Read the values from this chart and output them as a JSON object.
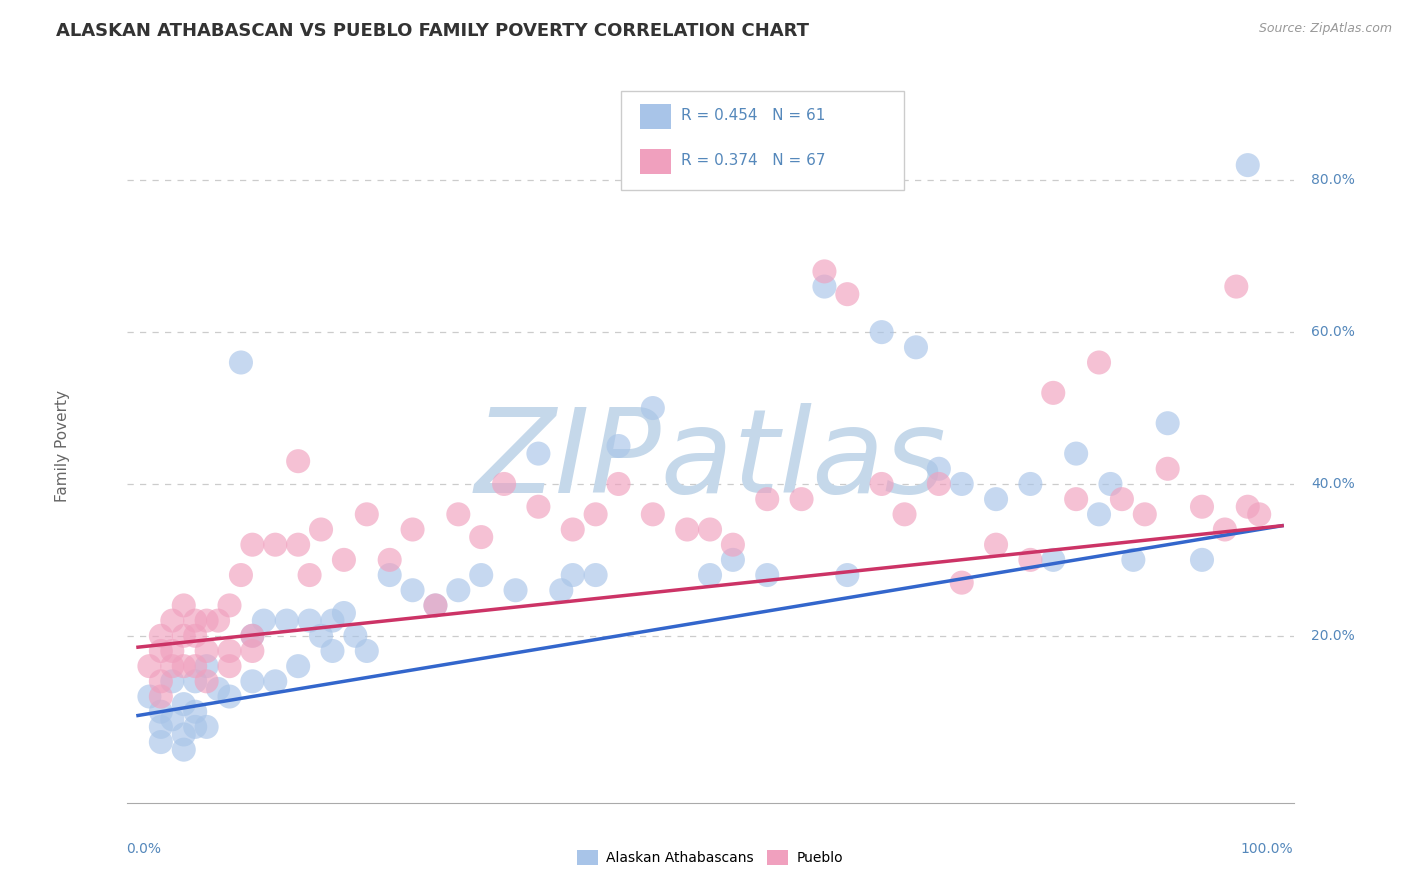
{
  "title": "ALASKAN ATHABASCAN VS PUEBLO FAMILY POVERTY CORRELATION CHART",
  "source": "Source: ZipAtlas.com",
  "ylabel": "Family Poverty",
  "ytick_labels": [
    "20.0%",
    "40.0%",
    "60.0%",
    "80.0%"
  ],
  "ytick_values": [
    0.2,
    0.4,
    0.6,
    0.8
  ],
  "xlim": [
    -0.01,
    1.01
  ],
  "ylim": [
    -0.02,
    0.92
  ],
  "legend_r1": "R = 0.454",
  "legend_n1": "N = 61",
  "legend_r2": "R = 0.374",
  "legend_n2": "N = 67",
  "color_blue": "#a8c4e8",
  "color_pink": "#f0a0be",
  "line_color_blue": "#3366cc",
  "line_color_pink": "#cc3366",
  "watermark": "ZIPatlas",
  "watermark_color": "#c5d8ea",
  "blue_scatter": [
    [
      0.01,
      0.12
    ],
    [
      0.02,
      0.1
    ],
    [
      0.02,
      0.08
    ],
    [
      0.02,
      0.06
    ],
    [
      0.03,
      0.14
    ],
    [
      0.03,
      0.09
    ],
    [
      0.04,
      0.07
    ],
    [
      0.04,
      0.11
    ],
    [
      0.04,
      0.05
    ],
    [
      0.05,
      0.14
    ],
    [
      0.05,
      0.1
    ],
    [
      0.05,
      0.08
    ],
    [
      0.06,
      0.16
    ],
    [
      0.06,
      0.08
    ],
    [
      0.07,
      0.13
    ],
    [
      0.08,
      0.12
    ],
    [
      0.09,
      0.56
    ],
    [
      0.1,
      0.14
    ],
    [
      0.1,
      0.2
    ],
    [
      0.11,
      0.22
    ],
    [
      0.12,
      0.14
    ],
    [
      0.13,
      0.22
    ],
    [
      0.14,
      0.16
    ],
    [
      0.15,
      0.22
    ],
    [
      0.16,
      0.2
    ],
    [
      0.17,
      0.22
    ],
    [
      0.17,
      0.18
    ],
    [
      0.18,
      0.23
    ],
    [
      0.19,
      0.2
    ],
    [
      0.2,
      0.18
    ],
    [
      0.22,
      0.28
    ],
    [
      0.24,
      0.26
    ],
    [
      0.26,
      0.24
    ],
    [
      0.28,
      0.26
    ],
    [
      0.3,
      0.28
    ],
    [
      0.33,
      0.26
    ],
    [
      0.35,
      0.44
    ],
    [
      0.37,
      0.26
    ],
    [
      0.38,
      0.28
    ],
    [
      0.4,
      0.28
    ],
    [
      0.42,
      0.45
    ],
    [
      0.45,
      0.5
    ],
    [
      0.5,
      0.28
    ],
    [
      0.52,
      0.3
    ],
    [
      0.55,
      0.28
    ],
    [
      0.6,
      0.66
    ],
    [
      0.62,
      0.28
    ],
    [
      0.65,
      0.6
    ],
    [
      0.68,
      0.58
    ],
    [
      0.7,
      0.42
    ],
    [
      0.72,
      0.4
    ],
    [
      0.75,
      0.38
    ],
    [
      0.78,
      0.4
    ],
    [
      0.8,
      0.3
    ],
    [
      0.82,
      0.44
    ],
    [
      0.84,
      0.36
    ],
    [
      0.85,
      0.4
    ],
    [
      0.87,
      0.3
    ],
    [
      0.9,
      0.48
    ],
    [
      0.93,
      0.3
    ],
    [
      0.97,
      0.82
    ]
  ],
  "pink_scatter": [
    [
      0.01,
      0.16
    ],
    [
      0.02,
      0.2
    ],
    [
      0.02,
      0.18
    ],
    [
      0.02,
      0.14
    ],
    [
      0.02,
      0.12
    ],
    [
      0.03,
      0.22
    ],
    [
      0.03,
      0.18
    ],
    [
      0.03,
      0.16
    ],
    [
      0.04,
      0.24
    ],
    [
      0.04,
      0.2
    ],
    [
      0.04,
      0.16
    ],
    [
      0.05,
      0.22
    ],
    [
      0.05,
      0.2
    ],
    [
      0.05,
      0.16
    ],
    [
      0.06,
      0.22
    ],
    [
      0.06,
      0.18
    ],
    [
      0.06,
      0.14
    ],
    [
      0.07,
      0.22
    ],
    [
      0.08,
      0.24
    ],
    [
      0.08,
      0.18
    ],
    [
      0.08,
      0.16
    ],
    [
      0.09,
      0.28
    ],
    [
      0.1,
      0.32
    ],
    [
      0.1,
      0.2
    ],
    [
      0.1,
      0.18
    ],
    [
      0.12,
      0.32
    ],
    [
      0.14,
      0.43
    ],
    [
      0.14,
      0.32
    ],
    [
      0.15,
      0.28
    ],
    [
      0.16,
      0.34
    ],
    [
      0.18,
      0.3
    ],
    [
      0.2,
      0.36
    ],
    [
      0.22,
      0.3
    ],
    [
      0.24,
      0.34
    ],
    [
      0.26,
      0.24
    ],
    [
      0.28,
      0.36
    ],
    [
      0.3,
      0.33
    ],
    [
      0.32,
      0.4
    ],
    [
      0.35,
      0.37
    ],
    [
      0.38,
      0.34
    ],
    [
      0.4,
      0.36
    ],
    [
      0.42,
      0.4
    ],
    [
      0.45,
      0.36
    ],
    [
      0.48,
      0.34
    ],
    [
      0.5,
      0.34
    ],
    [
      0.52,
      0.32
    ],
    [
      0.55,
      0.38
    ],
    [
      0.58,
      0.38
    ],
    [
      0.6,
      0.68
    ],
    [
      0.62,
      0.65
    ],
    [
      0.65,
      0.4
    ],
    [
      0.67,
      0.36
    ],
    [
      0.7,
      0.4
    ],
    [
      0.72,
      0.27
    ],
    [
      0.75,
      0.32
    ],
    [
      0.78,
      0.3
    ],
    [
      0.8,
      0.52
    ],
    [
      0.82,
      0.38
    ],
    [
      0.84,
      0.56
    ],
    [
      0.86,
      0.38
    ],
    [
      0.88,
      0.36
    ],
    [
      0.9,
      0.42
    ],
    [
      0.93,
      0.37
    ],
    [
      0.95,
      0.34
    ],
    [
      0.96,
      0.66
    ],
    [
      0.97,
      0.37
    ],
    [
      0.98,
      0.36
    ]
  ],
  "blue_line_x": [
    0.0,
    1.0
  ],
  "blue_line_y": [
    0.095,
    0.345
  ],
  "pink_line_x": [
    0.0,
    1.0
  ],
  "pink_line_y": [
    0.185,
    0.345
  ],
  "background_color": "#ffffff",
  "grid_color": "#cccccc",
  "title_fontsize": 13,
  "source_fontsize": 9,
  "axis_tick_color": "#5588bb",
  "ylabel_color": "#666666",
  "title_color": "#333333"
}
